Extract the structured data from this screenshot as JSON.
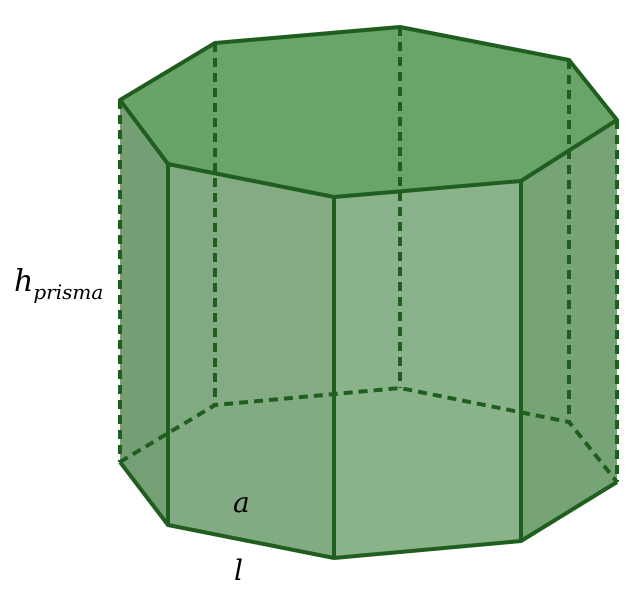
{
  "diagram": {
    "labels": {
      "height_main": "h",
      "height_subscript": "prisma",
      "apothem": "a",
      "side": "l"
    },
    "colors": {
      "edge": "#1f5e1f",
      "top_face": "#5e9e5e",
      "front_face": "#76a876",
      "side_face": "#6a9a6a",
      "bottom_face": "#8fba8f"
    }
  }
}
